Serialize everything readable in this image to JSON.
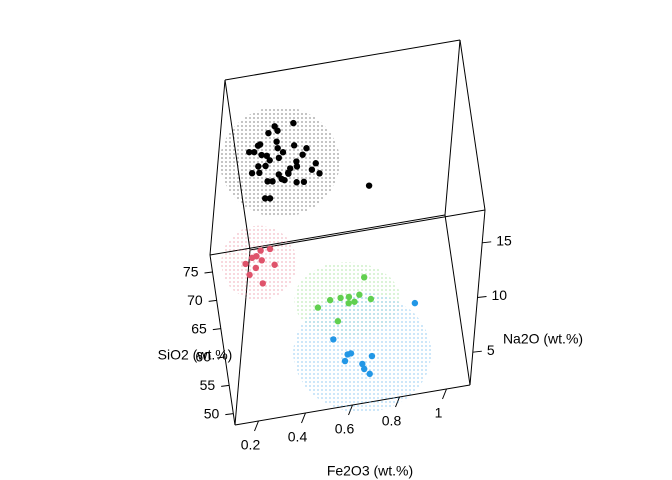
{
  "chart_data": {
    "type": "scatter3d",
    "xlabel": "Fe2O3 (wt.%)",
    "ylabel": "SiO2 (wt.%)",
    "zlabel": "Na2O (wt.%)",
    "xlim": [
      0.1,
      1.1
    ],
    "xticks": [
      0.2,
      0.4,
      0.6,
      0.8,
      1
    ],
    "ylim": [
      48,
      78
    ],
    "yticks": [
      50,
      55,
      60,
      65,
      70,
      75
    ],
    "zlim": [
      2,
      18
    ],
    "zticks": [
      5,
      10,
      15
    ],
    "series": [
      {
        "color": "#000000",
        "x": [
          0.22,
          0.25,
          0.28,
          0.3,
          0.32,
          0.35,
          0.38,
          0.4,
          0.27,
          0.31,
          0.36,
          0.42,
          0.45,
          0.24,
          0.29,
          0.33,
          0.37,
          0.41,
          0.26,
          0.34,
          0.39,
          0.44,
          0.48,
          0.3,
          0.35,
          0.28,
          0.32,
          0.38,
          0.43,
          0.5,
          0.23,
          0.27,
          0.36,
          0.4,
          0.46,
          0.31,
          0.34,
          0.29,
          0.52,
          0.75
        ],
        "y": [
          76,
          75,
          77,
          74,
          76,
          75,
          73,
          74,
          77,
          76,
          75,
          74,
          73,
          76,
          75,
          74,
          76,
          73,
          74,
          77,
          75,
          74,
          73,
          75,
          76,
          73,
          74,
          72,
          75,
          74,
          74,
          77,
          72,
          76,
          75,
          73,
          77,
          75,
          74,
          76
        ],
        "z": [
          12,
          13,
          11,
          12,
          14,
          10,
          11,
          13,
          12,
          9,
          12,
          11,
          10,
          10,
          14,
          13,
          9,
          12,
          11,
          13,
          10,
          12,
          11,
          8,
          11,
          13,
          10,
          12,
          9,
          11,
          13,
          10,
          11,
          14,
          12,
          9,
          12,
          11,
          10,
          7
        ]
      },
      {
        "color": "#df536b",
        "x": [
          0.2,
          0.22,
          0.25,
          0.27,
          0.3,
          0.24,
          0.28,
          0.21,
          0.26,
          0.32
        ],
        "y": [
          68,
          67,
          69,
          66,
          68,
          67,
          70,
          66,
          68,
          67
        ],
        "z": [
          6,
          7,
          6,
          5,
          7,
          6,
          5,
          6,
          7,
          6
        ]
      },
      {
        "color": "#61d04f",
        "x": [
          0.55,
          0.6,
          0.65,
          0.7,
          0.58,
          0.63,
          0.68,
          0.72,
          0.5,
          0.62
        ],
        "y": [
          63,
          64,
          62,
          65,
          61,
          63,
          64,
          62,
          63,
          61
        ],
        "z": [
          4,
          3.5,
          4,
          4.5,
          3,
          4,
          3.5,
          4,
          3.5,
          4.5
        ]
      },
      {
        "color": "#2297e6",
        "x": [
          0.55,
          0.6,
          0.65,
          0.7,
          0.62,
          0.68,
          0.9,
          0.58,
          0.66
        ],
        "y": [
          58,
          55,
          52,
          54,
          56,
          51,
          60,
          53,
          52
        ],
        "z": [
          3,
          3,
          3.5,
          3,
          2.5,
          3,
          4,
          3.5,
          3
        ]
      }
    ]
  }
}
